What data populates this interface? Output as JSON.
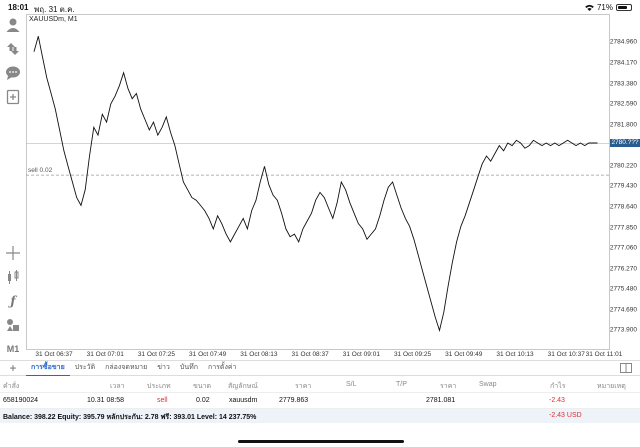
{
  "status_bar": {
    "time": "18:01",
    "date": "พฤ. 31 ต.ค.",
    "battery_percent": 71,
    "battery_label": "71%"
  },
  "chart": {
    "symbol_label": "XAUUSDm, M1",
    "sell_label": "sell 0.02",
    "current_price_label": "2780.???"
  },
  "chart_data": {
    "type": "line",
    "ylim": [
      2773.3,
      2785.9
    ],
    "y_ticks": [
      "2784.960",
      "2784.170",
      "2783.380",
      "2782.590",
      "2781.800",
      "2781.010",
      "2780.220",
      "2779.430",
      "2778.640",
      "2777.850",
      "2777.060",
      "2776.270",
      "2775.480",
      "2774.690",
      "2773.900"
    ],
    "y_tick_values": [
      2784.96,
      2784.17,
      2783.38,
      2782.59,
      2781.8,
      2781.01,
      2780.22,
      2779.43,
      2778.64,
      2777.85,
      2777.06,
      2776.27,
      2775.48,
      2774.69,
      2773.9
    ],
    "x_ticks": [
      "31 Oct 06:37",
      "31 Oct 07:01",
      "31 Oct 07:25",
      "31 Oct 07:49",
      "31 Oct 08:13",
      "31 Oct 08:37",
      "31 Oct 09:01",
      "31 Oct 09:25",
      "31 Oct 09:49",
      "31 Oct 10:13",
      "31 Oct 10:37",
      "31 Oct 11:01"
    ],
    "x_tick_minutes": [
      0,
      24,
      48,
      72,
      96,
      120,
      144,
      168,
      192,
      216,
      240,
      264
    ],
    "sell_price": 2779.863,
    "current_price": 2781.081,
    "series": [
      {
        "x": [
          0,
          2,
          4,
          6,
          8,
          10,
          12,
          14,
          16,
          18,
          20,
          22,
          24,
          26,
          28,
          30,
          32,
          34,
          36,
          38,
          40,
          42,
          44,
          46,
          48,
          50,
          52,
          54,
          56,
          58,
          60,
          62,
          64,
          66,
          68,
          70,
          72,
          74,
          76,
          78,
          80,
          82,
          84,
          86,
          88,
          90,
          92,
          94,
          96,
          98,
          100,
          102,
          104,
          106,
          108,
          110,
          112,
          114,
          116,
          118,
          120,
          122,
          124,
          126,
          128,
          130,
          132,
          134,
          136,
          138,
          140,
          142,
          144,
          146,
          148,
          150,
          152,
          154,
          156,
          158,
          160,
          162,
          164,
          166,
          168,
          170,
          172,
          174,
          176,
          178,
          180,
          182,
          184,
          186,
          188,
          190,
          192,
          194,
          196,
          198,
          200,
          202,
          204,
          206,
          208,
          210,
          212,
          214,
          216,
          218,
          220,
          222,
          224,
          226,
          228,
          230,
          232,
          234,
          236,
          238,
          240,
          242,
          244,
          246,
          248,
          250,
          252,
          254,
          256,
          258,
          260,
          262,
          264
        ],
        "values": [
          2784.6,
          2785.2,
          2784.4,
          2783.6,
          2783.0,
          2782.4,
          2781.6,
          2780.8,
          2780.2,
          2779.6,
          2779.0,
          2778.7,
          2779.3,
          2780.6,
          2781.7,
          2781.4,
          2782.2,
          2781.9,
          2782.6,
          2782.9,
          2783.3,
          2783.8,
          2783.2,
          2782.8,
          2783.0,
          2782.4,
          2782.0,
          2781.6,
          2781.9,
          2781.4,
          2781.7,
          2782.1,
          2781.5,
          2781.0,
          2780.3,
          2779.6,
          2779.3,
          2779.0,
          2778.9,
          2778.7,
          2778.5,
          2778.2,
          2777.8,
          2778.3,
          2778.0,
          2777.6,
          2777.3,
          2777.6,
          2777.9,
          2778.2,
          2777.8,
          2778.5,
          2778.9,
          2779.6,
          2780.2,
          2779.5,
          2779.1,
          2778.9,
          2778.4,
          2777.8,
          2777.5,
          2777.6,
          2777.3,
          2777.8,
          2778.1,
          2778.4,
          2778.9,
          2779.2,
          2779.0,
          2778.6,
          2778.2,
          2778.8,
          2779.6,
          2779.3,
          2778.8,
          2778.4,
          2778.0,
          2777.8,
          2777.4,
          2777.6,
          2777.8,
          2778.3,
          2778.9,
          2779.4,
          2779.6,
          2779.1,
          2778.6,
          2778.2,
          2777.9,
          2777.4,
          2776.8,
          2776.2,
          2775.6,
          2775.0,
          2774.4,
          2773.9,
          2774.6,
          2775.6,
          2776.5,
          2777.3,
          2777.9,
          2778.3,
          2778.8,
          2779.3,
          2779.8,
          2780.3,
          2780.6,
          2780.4,
          2780.7,
          2781.0,
          2780.8,
          2781.1,
          2781.0,
          2781.2,
          2781.1,
          2780.9,
          2781.0,
          2781.2,
          2781.1,
          2781.0,
          2781.1,
          2781.0,
          2781.1,
          2781.0,
          2781.1,
          2781.2,
          2781.1,
          2781.0,
          2781.1,
          2781.0,
          2781.1,
          2781.1,
          2781.1
        ]
      }
    ],
    "grid": false
  },
  "tabs": [
    {
      "label": "การซื้อขาย",
      "active": true
    },
    {
      "label": "ประวัติ",
      "active": false
    },
    {
      "label": "กล่องจดหมาย",
      "active": false
    },
    {
      "label": "ข่าว",
      "active": false
    },
    {
      "label": "บันทึก",
      "active": false
    },
    {
      "label": "การตั้งค่า",
      "active": false
    }
  ],
  "table": {
    "headers": [
      "คำสั่ง",
      "เวลา",
      "ประเภท",
      "ขนาด",
      "สัญลักษณ์",
      "ราคา",
      "S/L",
      "T/P",
      "ราคา",
      "Swap",
      "กำไร",
      "หมายเหตุ"
    ],
    "rows": [
      {
        "order": "658190024",
        "time": "10.31 08:58",
        "type": "sell",
        "size": "0.02",
        "symbol": "xauusdm",
        "price": "2779.863",
        "sl": "",
        "tp": "",
        "current": "2781.081",
        "swap": "",
        "profit": "-2.43",
        "note": ""
      }
    ]
  },
  "balance": {
    "text": "Balance: 398.22 Equity: 395.79 หลักประกัน: 2.78 ฟรี: 393.01 Level: 14 237.75%",
    "profit": "-2.43  USD"
  },
  "colors": {
    "accent": "#2a66c9",
    "loss": "#e03030",
    "price_tag": "#2a5d8f"
  }
}
